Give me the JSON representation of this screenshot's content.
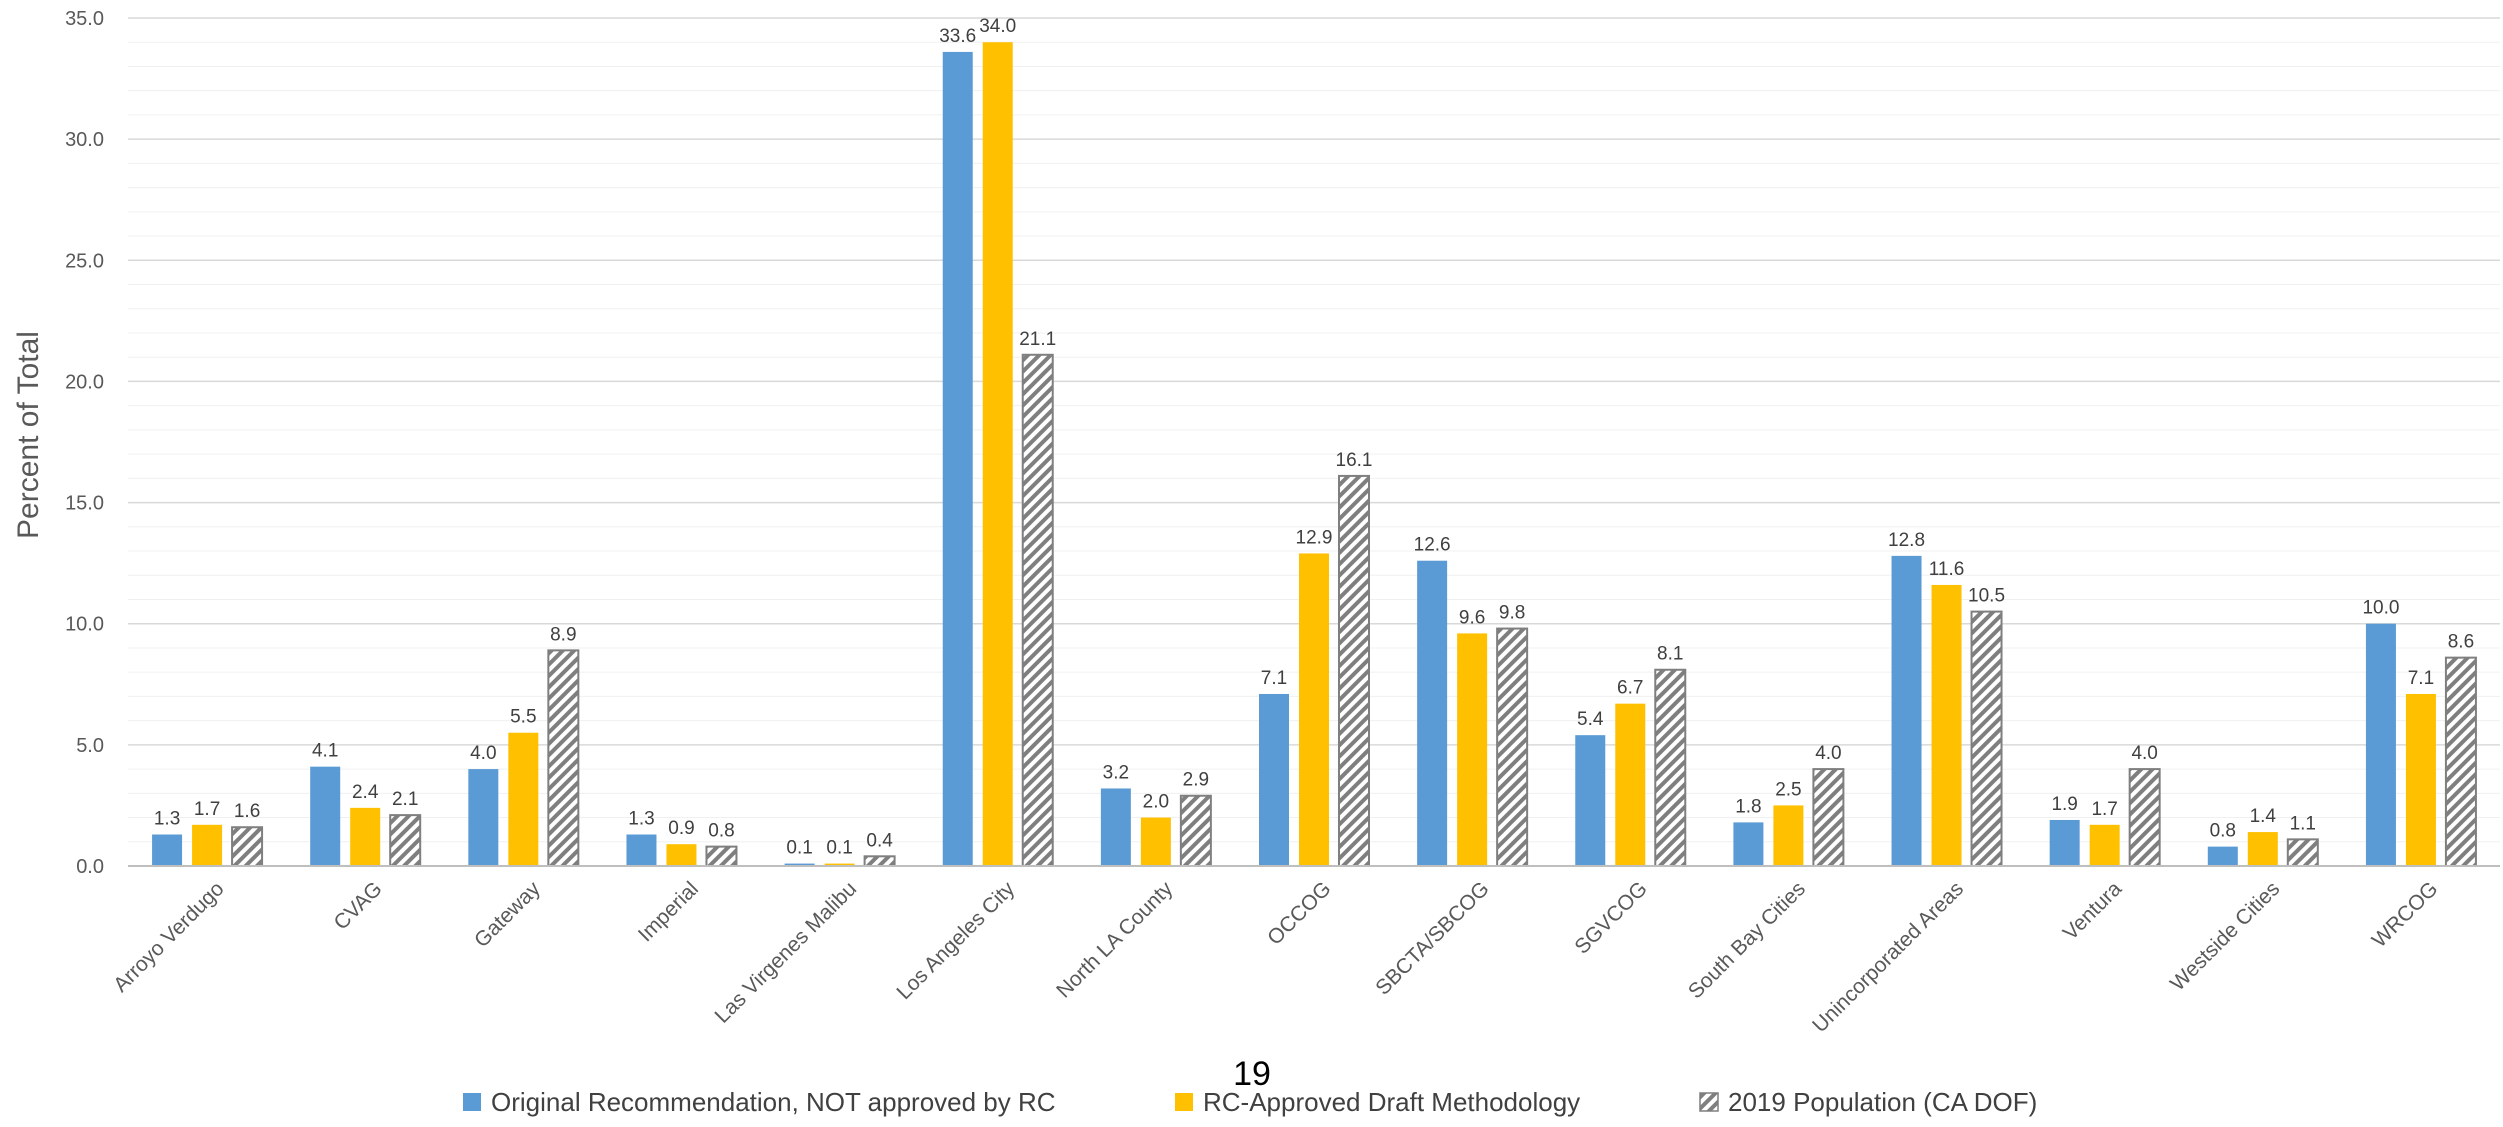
{
  "chart_data": {
    "type": "bar",
    "ylabel": "Percent of Total",
    "ylim": [
      0,
      35
    ],
    "y_tick_step": 5,
    "y_minor_step": 1,
    "y_ticks": [
      "0.0",
      "5.0",
      "10.0",
      "15.0",
      "20.0",
      "25.0",
      "30.0",
      "35.0"
    ],
    "grid": true,
    "legend_position": "bottom",
    "categories": [
      "Arroyo Verdugo",
      "CVAG",
      "Gateway",
      "Imperial",
      "Las Virgenes Malibu",
      "Los Angeles City",
      "North LA County",
      "OCCOG",
      "SBCTA/SBCOG",
      "SGVCOG",
      "South Bay Cities",
      "Unincorporated Areas",
      "Ventura",
      "Westside Cities",
      "WRCOG"
    ],
    "series": [
      {
        "name": "Original Recommendation, NOT approved by RC",
        "color": "#5b9bd5",
        "pattern": "solid",
        "values": [
          1.3,
          4.1,
          4.0,
          1.3,
          0.1,
          33.6,
          3.2,
          7.1,
          12.6,
          5.4,
          1.8,
          12.8,
          1.9,
          0.8,
          10.0
        ],
        "labels": [
          "1.3",
          "4.1",
          "4.0",
          "1.3",
          "0.1",
          "33.6",
          "3.2",
          "7.1",
          "12.6",
          "5.4",
          "1.8",
          "12.8",
          "1.9",
          "0.8",
          "10.0"
        ]
      },
      {
        "name": "RC-Approved Draft Methodology",
        "color": "#ffc000",
        "pattern": "solid",
        "values": [
          1.7,
          2.4,
          5.5,
          0.9,
          0.1,
          34.0,
          2.0,
          12.9,
          9.6,
          6.7,
          2.5,
          11.6,
          1.7,
          1.4,
          7.1
        ],
        "labels": [
          "1.7",
          "2.4",
          "5.5",
          "0.9",
          "0.1",
          "34.0",
          "2.0",
          "12.9",
          "9.6",
          "6.7",
          "2.5",
          "11.6",
          "1.7",
          "1.4",
          "7.1"
        ]
      },
      {
        "name": "2019 Population (CA DOF)",
        "color": "#7f7f7f",
        "pattern": "hatch",
        "values": [
          1.6,
          2.1,
          8.9,
          0.8,
          0.4,
          21.1,
          2.9,
          16.1,
          9.8,
          8.1,
          4.0,
          10.5,
          4.0,
          1.1,
          8.6
        ],
        "labels": [
          "1.6",
          "2.1",
          "8.9",
          "0.8",
          "0.4",
          "21.1",
          "2.9",
          "16.1",
          "9.8",
          "8.1",
          "4.0",
          "10.5",
          "4.0",
          "1.1",
          "8.6"
        ]
      }
    ]
  },
  "page": {
    "number": "19"
  }
}
